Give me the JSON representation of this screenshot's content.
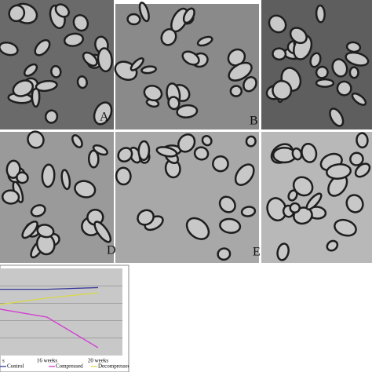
{
  "panels": {
    "labels": [
      "A",
      "B",
      "D",
      "E"
    ]
  },
  "chart_data": {
    "type": "line",
    "categories": [
      "s",
      "16 weeks",
      "20 weeks"
    ],
    "ylim": [
      0,
      5
    ],
    "series": [
      {
        "name": "Control",
        "color": "#3a3a9a",
        "values": [
          3.8,
          3.8,
          3.9
        ]
      },
      {
        "name": "Compressed",
        "color": "#d23ad2",
        "values": [
          2.7,
          2.2,
          0.45
        ]
      },
      {
        "name": "Decompressed",
        "color": "#d8d84a",
        "values": [
          2.9,
          3.3,
          3.6
        ]
      }
    ]
  }
}
